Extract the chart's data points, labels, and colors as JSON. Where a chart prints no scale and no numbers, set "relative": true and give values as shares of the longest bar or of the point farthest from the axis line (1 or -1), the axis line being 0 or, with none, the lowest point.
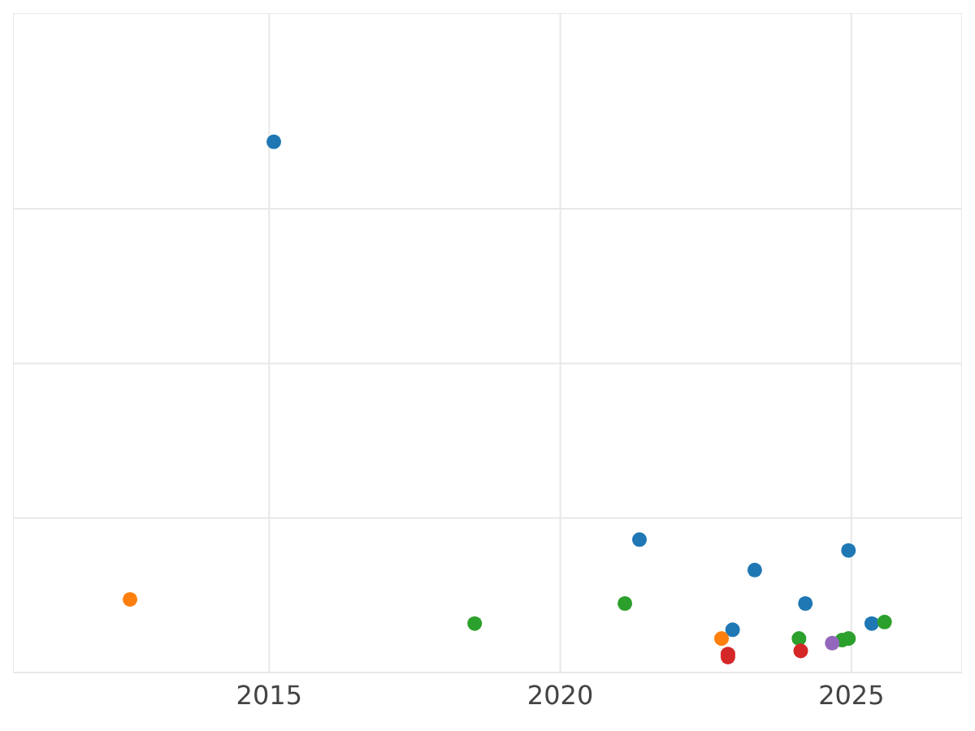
{
  "chart_data": {
    "type": "scatter",
    "relative": true,
    "marker": "circle",
    "grid": true,
    "xlim": [
      2010.6,
      2026.9
    ],
    "xticks": [
      2015,
      2020,
      2025
    ],
    "series": [
      {
        "color": "#1f77b4",
        "x": [
          2015.08,
          2021.36,
          2022.96,
          2023.34,
          2024.21,
          2024.95,
          2025.35
        ],
        "values": [
          1.0,
          0.228,
          0.053,
          0.169,
          0.104,
          0.207,
          0.065
        ]
      },
      {
        "color": "#ff7f0e",
        "x": [
          2012.61,
          2022.77
        ],
        "values": [
          0.112,
          0.036
        ]
      },
      {
        "color": "#2ca02c",
        "x": [
          2018.53,
          2021.11,
          2024.1,
          2024.84,
          2024.95,
          2025.57
        ],
        "values": [
          0.065,
          0.104,
          0.036,
          0.033,
          0.036,
          0.068
        ]
      },
      {
        "color": "#d62728",
        "x": [
          2022.88,
          2022.88,
          2024.13
        ],
        "values": [
          0.006,
          0.0,
          0.012
        ]
      },
      {
        "color": "#9467bd",
        "x": [
          2024.67
        ],
        "values": [
          0.027
        ]
      }
    ]
  }
}
